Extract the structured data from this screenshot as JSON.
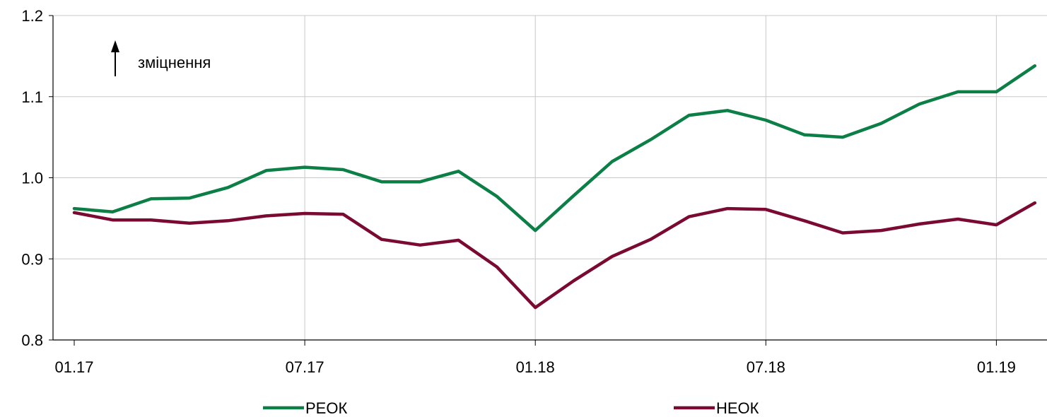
{
  "chart_data": {
    "type": "line",
    "title": "",
    "xlabel": "",
    "ylabel": "",
    "ylim": [
      0.8,
      1.2
    ],
    "y_ticks": [
      0.8,
      0.9,
      1.0,
      1.1,
      1.2
    ],
    "y_tick_labels": [
      "0.8",
      "0.9",
      "1.0",
      "1.1",
      "1.2"
    ],
    "x": [
      "2017-01",
      "2017-02",
      "2017-03",
      "2017-04",
      "2017-05",
      "2017-06",
      "2017-07",
      "2017-08",
      "2017-09",
      "2017-10",
      "2017-11",
      "2017-12",
      "2018-01",
      "2018-02",
      "2018-03",
      "2018-04",
      "2018-05",
      "2018-06",
      "2018-07",
      "2018-08",
      "2018-09",
      "2018-10",
      "2018-11",
      "2018-12",
      "2019-01",
      "2019-02"
    ],
    "x_ticks": [
      {
        "x": "2017-01",
        "label": "01.17"
      },
      {
        "x": "2017-07",
        "label": "07.17"
      },
      {
        "x": "2018-01",
        "label": "01.18"
      },
      {
        "x": "2018-07",
        "label": "07.18"
      },
      {
        "x": "2019-01",
        "label": "01.19"
      }
    ],
    "grid": true,
    "legend_position": "bottom",
    "annotation": {
      "text": "зміцнення",
      "icon": "arrow-up-icon"
    },
    "series": [
      {
        "name": "РЕОК",
        "color": "#0b7f45",
        "values": [
          0.962,
          0.958,
          0.974,
          0.975,
          0.988,
          1.009,
          1.013,
          1.01,
          0.995,
          0.995,
          1.008,
          0.977,
          0.935,
          0.978,
          1.02,
          1.047,
          1.077,
          1.083,
          1.071,
          1.053,
          1.05,
          1.067,
          1.091,
          1.106,
          1.106,
          1.138
        ]
      },
      {
        "name": "НЕОК",
        "color": "#7a0a32",
        "values": [
          0.957,
          0.948,
          0.948,
          0.944,
          0.947,
          0.953,
          0.956,
          0.955,
          0.924,
          0.917,
          0.923,
          0.89,
          0.84,
          0.873,
          0.903,
          0.924,
          0.952,
          0.962,
          0.961,
          0.947,
          0.932,
          0.935,
          0.943,
          0.949,
          0.942,
          0.969
        ]
      }
    ]
  }
}
